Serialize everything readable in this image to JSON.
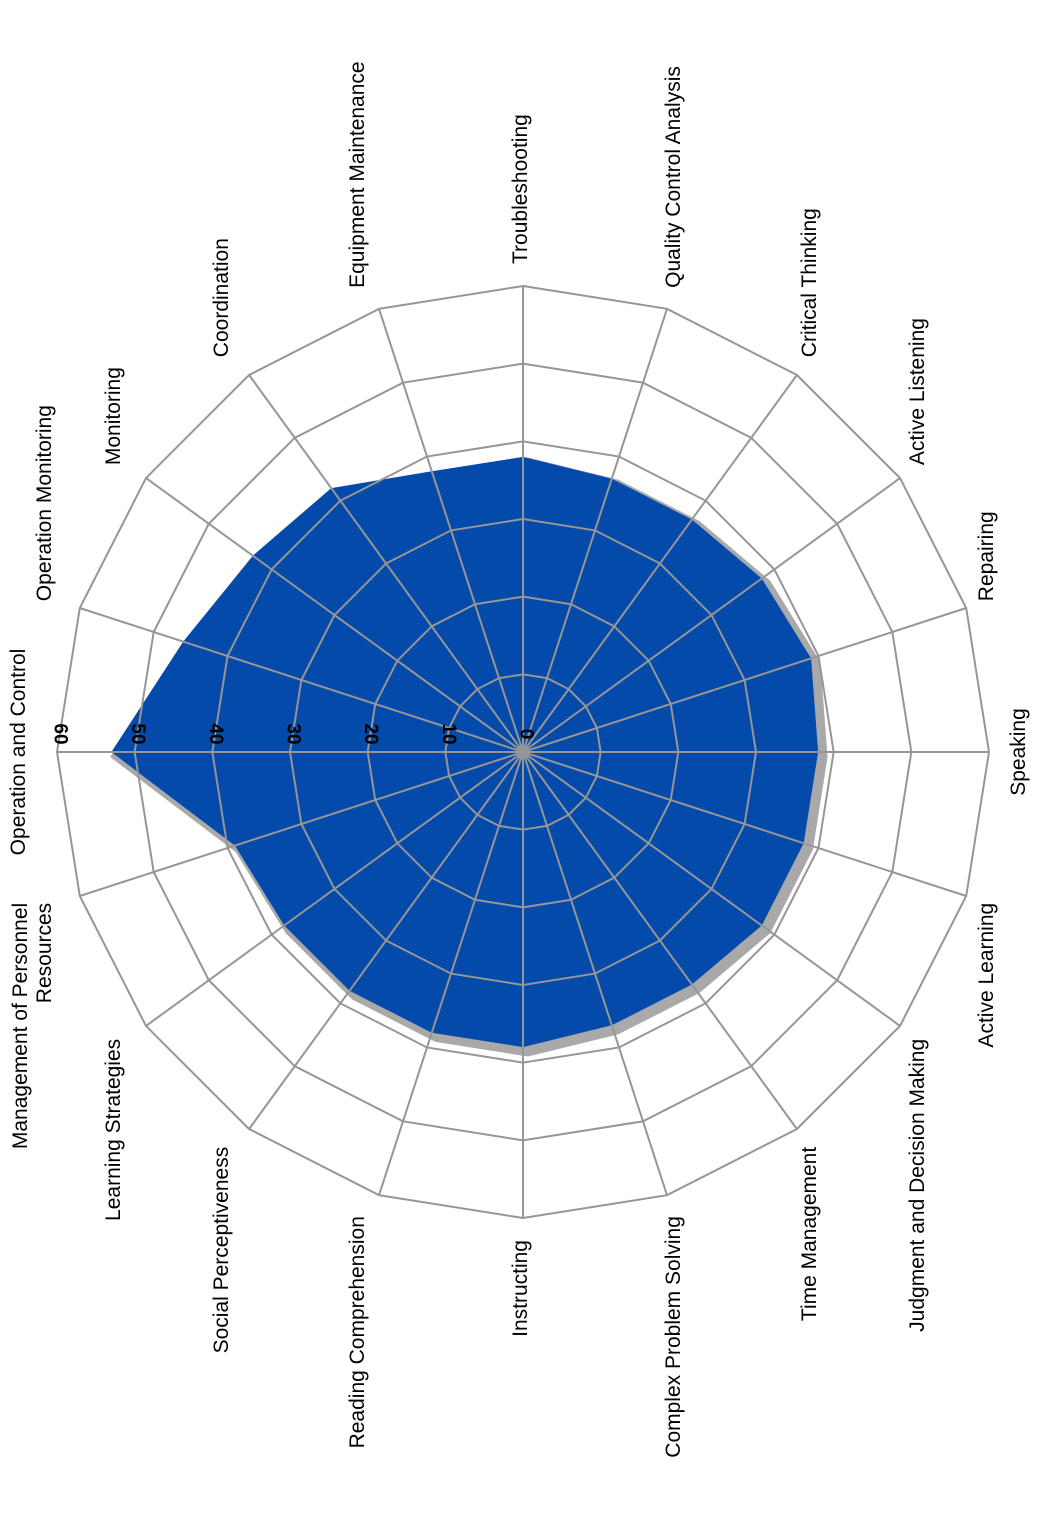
{
  "chart_data": {
    "type": "radar",
    "title": "",
    "orientation": "rotated-90-clockwise",
    "radial_range": [
      0,
      60
    ],
    "radial_ticks": [
      0,
      10,
      20,
      30,
      40,
      50,
      60
    ],
    "grid": true,
    "legend": "none",
    "color": "#034aab",
    "categories": [
      "Troubleshooting",
      "Quality Control Analysis",
      "Critical Thinking",
      "Active Listening",
      "Repairing",
      "Speaking",
      "Active Learning",
      "Judgment and Decision Making",
      "Time Management",
      "Complex Problem Solving",
      "Instructing",
      "Reading Comprehension",
      "Social Perceptiveness",
      "Learning Strategies",
      "Management of Personnel Resources",
      "Operation and Control",
      "Operation Monitoring",
      "Monitoring",
      "Coordination",
      "Equipment Maintenance"
    ],
    "series": [
      {
        "values": [
          38,
          37,
          37,
          38,
          39,
          38,
          38,
          38,
          37,
          37,
          38,
          38,
          38,
          38,
          39,
          53,
          46,
          43,
          42,
          38
        ]
      }
    ]
  }
}
